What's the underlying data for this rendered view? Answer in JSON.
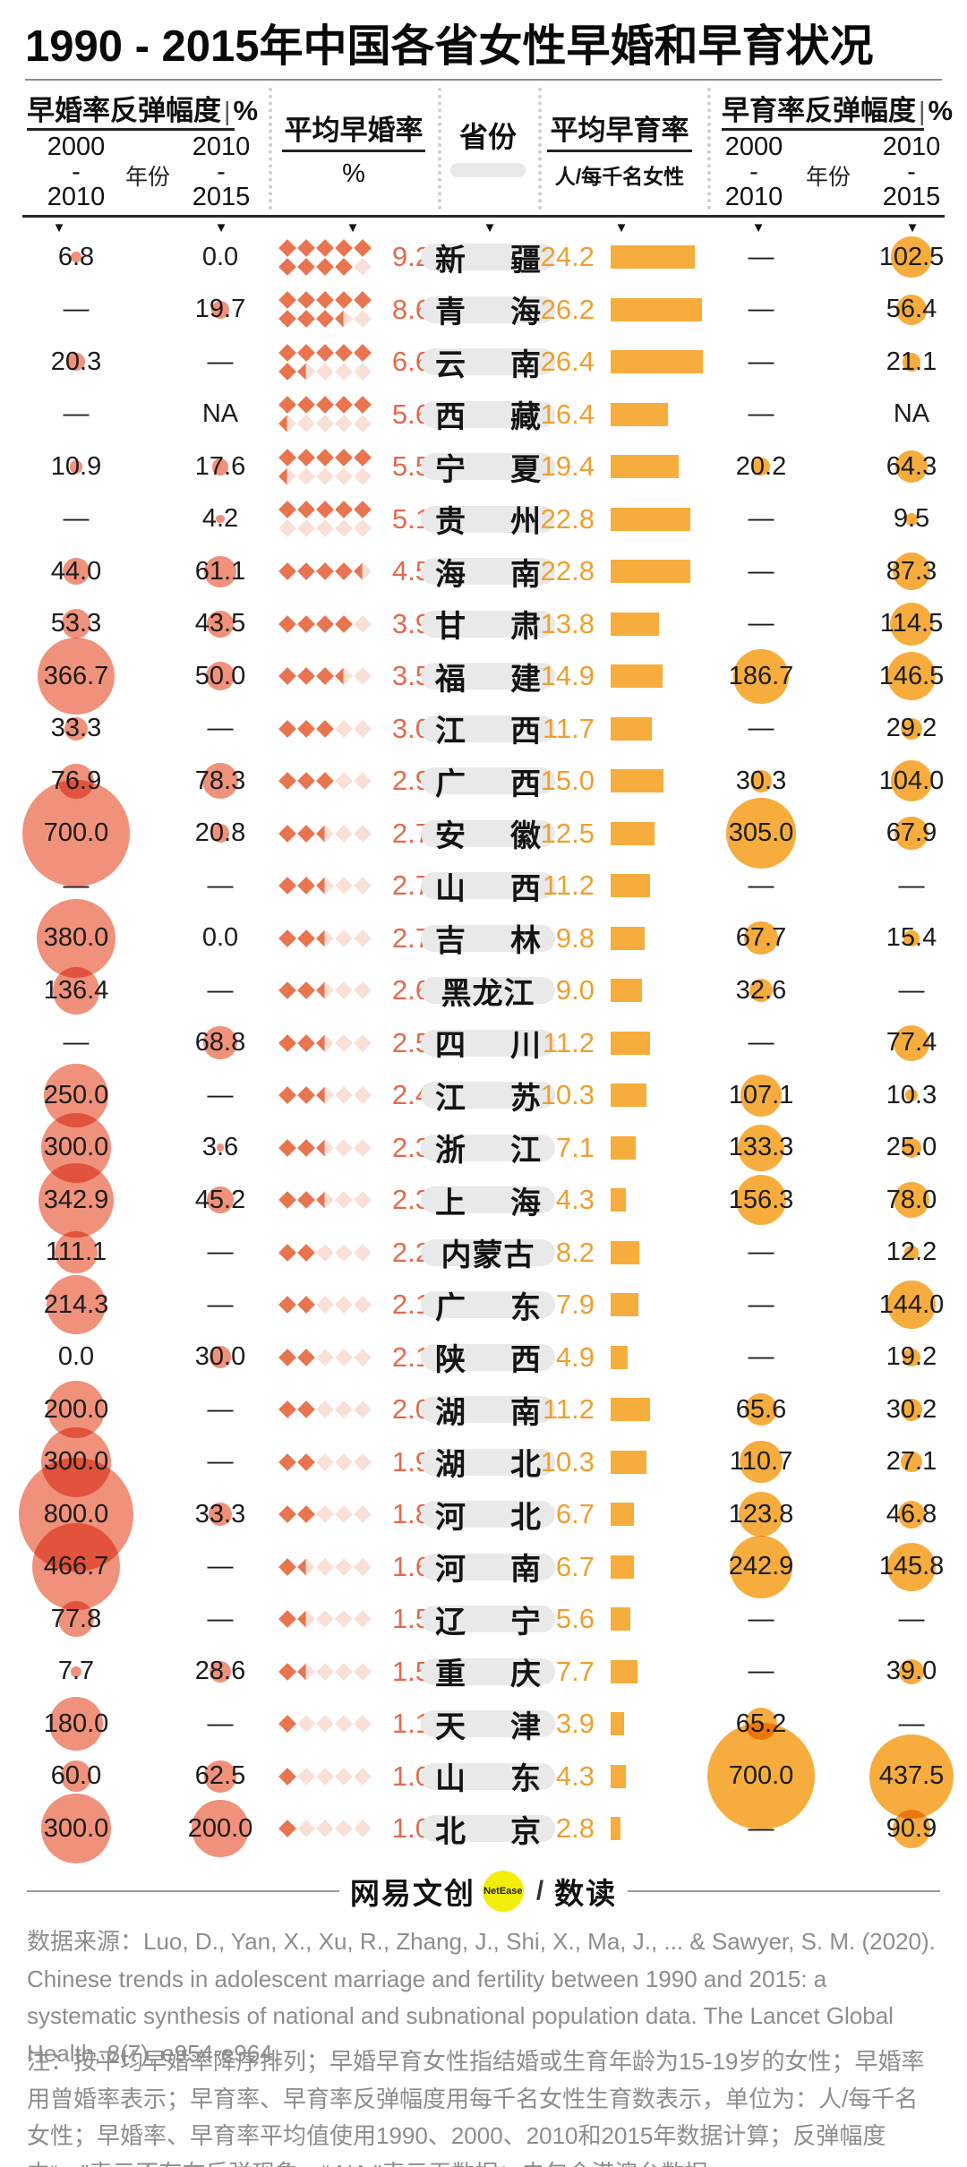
{
  "title": "1990 - 2015年中国各省女性早婚和早育状况",
  "header": {
    "marriage_rebound_title": "早婚率反弹幅度",
    "marriage_rebound_unit": "%",
    "fertility_rebound_title": "早育率反弹幅度",
    "fertility_rebound_unit": "%",
    "avg_marriage_title": "平均早婚率",
    "avg_marriage_unit": "%",
    "avg_fertility_title": "平均早育率",
    "avg_fertility_unit": "人/每千名女性",
    "province_label": "省份",
    "year_label": "年份",
    "period_2000_2010": [
      "2000",
      "-",
      "2010"
    ],
    "period_2010_2015": [
      "2010",
      "-",
      "2015"
    ],
    "sort_arrow": "▼"
  },
  "colors": {
    "salmon_bubble": "#f0917b",
    "red_text": "#e5694b",
    "red_diamond": "#e87450",
    "red_diamond_light": "#f9e0d6",
    "orange_bubble_bar": "#f6ad3e",
    "orange_text": "#ee9f31",
    "province_pill_gray": "#e9e9e9",
    "footer_gray": "#8d8d8d",
    "logo_yellow": "#f2ee0a"
  },
  "footer": {
    "brand_left": "网易文创",
    "brand_badge": "NetEase",
    "brand_slash": "/",
    "brand_right": "数读",
    "source": "数据来源：Luo, D., Yan, X., Xu, R., Zhang, J., Shi, X., Ma, J., ... & Sawyer, S. M. (2020). Chinese trends in adolescent marriage and fertility between 1990 and 2015: a systematic synthesis of national and subnational population data. The Lancet Global Health, 8(7), e954-e964.",
    "notes": "注：按平均早婚率降序排列；早婚早育女性指结婚或生育年龄为15-19岁的女性；早婚率用曾婚率表示；早育率、早育率反弹幅度用每千名女性生育数表示，单位为：人/每千名女性；早婚率、早育率平均值使用1990、2000、2010和2015年数据计算；反弹幅度中“－”表示不存在反弹现象，“ NA \"表示无数据；未包含港澳台数据。"
  },
  "chart_data": {
    "type": "table",
    "title": "1990 - 2015年中国各省女性早婚和早育状况",
    "columns": [
      "早婚率反弹幅度 2000-2010 (%)",
      "早婚率反弹幅度 2010-2015 (%)",
      "平均早婚率 (%)",
      "省份",
      "平均早育率 (人/每千名女性)",
      "早育率反弹幅度 2000-2010 (%)",
      "早育率反弹幅度 2010-2015 (%)"
    ],
    "rows": [
      {
        "p": "新疆",
        "mr1": "6.8",
        "mr2": "0.0",
        "m": "9.2",
        "f": "24.2",
        "fr1": "—",
        "fr2": "102.5"
      },
      {
        "p": "青海",
        "mr1": "—",
        "mr2": "19.7",
        "m": "8.6",
        "f": "26.2",
        "fr1": "—",
        "fr2": "56.4"
      },
      {
        "p": "云南",
        "mr1": "20.3",
        "mr2": "—",
        "m": "6.6",
        "f": "26.4",
        "fr1": "—",
        "fr2": "21.1"
      },
      {
        "p": "西藏",
        "mr1": "—",
        "mr2": "NA",
        "m": "5.6",
        "f": "16.4",
        "fr1": "—",
        "fr2": "NA"
      },
      {
        "p": "宁夏",
        "mr1": "10.9",
        "mr2": "17.6",
        "m": "5.5",
        "f": "19.4",
        "fr1": "20.2",
        "fr2": "64.3"
      },
      {
        "p": "贵州",
        "mr1": "—",
        "mr2": "4.2",
        "m": "5.1",
        "f": "22.8",
        "fr1": "—",
        "fr2": "9.5"
      },
      {
        "p": "海南",
        "mr1": "44.0",
        "mr2": "61.1",
        "m": "4.5",
        "f": "22.8",
        "fr1": "—",
        "fr2": "87.3"
      },
      {
        "p": "甘肃",
        "mr1": "53.3",
        "mr2": "43.5",
        "m": "3.9",
        "f": "13.8",
        "fr1": "—",
        "fr2": "114.5"
      },
      {
        "p": "福建",
        "mr1": "366.7",
        "mr2": "50.0",
        "m": "3.5",
        "f": "14.9",
        "fr1": "186.7",
        "fr2": "146.5"
      },
      {
        "p": "江西",
        "mr1": "33.3",
        "mr2": "—",
        "m": "3.0",
        "f": "11.7",
        "fr1": "—",
        "fr2": "29.2"
      },
      {
        "p": "广西",
        "mr1": "76.9",
        "mr2": "78.3",
        "m": "2.9",
        "f": "15.0",
        "fr1": "30.3",
        "fr2": "104.0"
      },
      {
        "p": "安徽",
        "mr1": "700.0",
        "mr2": "20.8",
        "m": "2.7",
        "f": "12.5",
        "fr1": "305.0",
        "fr2": "67.9"
      },
      {
        "p": "山西",
        "mr1": "—",
        "mr2": "—",
        "m": "2.7",
        "f": "11.2",
        "fr1": "—",
        "fr2": "—"
      },
      {
        "p": "吉林",
        "mr1": "380.0",
        "mr2": "0.0",
        "m": "2.7",
        "f": "9.8",
        "fr1": "67.7",
        "fr2": "15.4"
      },
      {
        "p": "黑龙江",
        "mr1": "136.4",
        "mr2": "—",
        "m": "2.6",
        "f": "9.0",
        "fr1": "32.6",
        "fr2": "—"
      },
      {
        "p": "四川",
        "mr1": "—",
        "mr2": "68.8",
        "m": "2.5",
        "f": "11.2",
        "fr1": "—",
        "fr2": "77.4"
      },
      {
        "p": "江苏",
        "mr1": "250.0",
        "mr2": "—",
        "m": "2.4",
        "f": "10.3",
        "fr1": "107.1",
        "fr2": "10.3"
      },
      {
        "p": "浙江",
        "mr1": "300.0",
        "mr2": "3.6",
        "m": "2.3",
        "f": "7.1",
        "fr1": "133.3",
        "fr2": "25.0"
      },
      {
        "p": "上海",
        "mr1": "342.9",
        "mr2": "45.2",
        "m": "2.3",
        "f": "4.3",
        "fr1": "156.3",
        "fr2": "78.0"
      },
      {
        "p": "内蒙古",
        "mr1": "111.1",
        "mr2": "—",
        "m": "2.2",
        "f": "8.2",
        "fr1": "—",
        "fr2": "12.2"
      },
      {
        "p": "广东",
        "mr1": "214.3",
        "mr2": "—",
        "m": "2.1",
        "f": "7.9",
        "fr1": "—",
        "fr2": "144.0"
      },
      {
        "p": "陕西",
        "mr1": "0.0",
        "mr2": "30.0",
        "m": "2.1",
        "f": "4.9",
        "fr1": "—",
        "fr2": "19.2"
      },
      {
        "p": "湖南",
        "mr1": "200.0",
        "mr2": "—",
        "m": "2.0",
        "f": "11.2",
        "fr1": "65.6",
        "fr2": "30.2"
      },
      {
        "p": "湖北",
        "mr1": "300.0",
        "mr2": "—",
        "m": "1.9",
        "f": "10.3",
        "fr1": "110.7",
        "fr2": "27.1"
      },
      {
        "p": "河北",
        "mr1": "800.0",
        "mr2": "33.3",
        "m": "1.8",
        "f": "6.7",
        "fr1": "123.8",
        "fr2": "46.8"
      },
      {
        "p": "河南",
        "mr1": "466.7",
        "mr2": "—",
        "m": "1.6",
        "f": "6.7",
        "fr1": "242.9",
        "fr2": "145.8"
      },
      {
        "p": "辽宁",
        "mr1": "77.8",
        "mr2": "—",
        "m": "1.5",
        "f": "5.6",
        "fr1": "—",
        "fr2": "—"
      },
      {
        "p": "重庆",
        "mr1": "7.7",
        "mr2": "28.6",
        "m": "1.5",
        "f": "7.7",
        "fr1": "—",
        "fr2": "39.0"
      },
      {
        "p": "天津",
        "mr1": "180.0",
        "mr2": "—",
        "m": "1.1",
        "f": "3.9",
        "fr1": "65.2",
        "fr2": "—"
      },
      {
        "p": "山东",
        "mr1": "60.0",
        "mr2": "62.5",
        "m": "1.0",
        "f": "4.3",
        "fr1": "700.0",
        "fr2": "437.5"
      },
      {
        "p": "北京",
        "mr1": "300.0",
        "mr2": "200.0",
        "m": "1.0",
        "f": "2.8",
        "fr1": "—",
        "fr2": "90.9"
      }
    ]
  }
}
